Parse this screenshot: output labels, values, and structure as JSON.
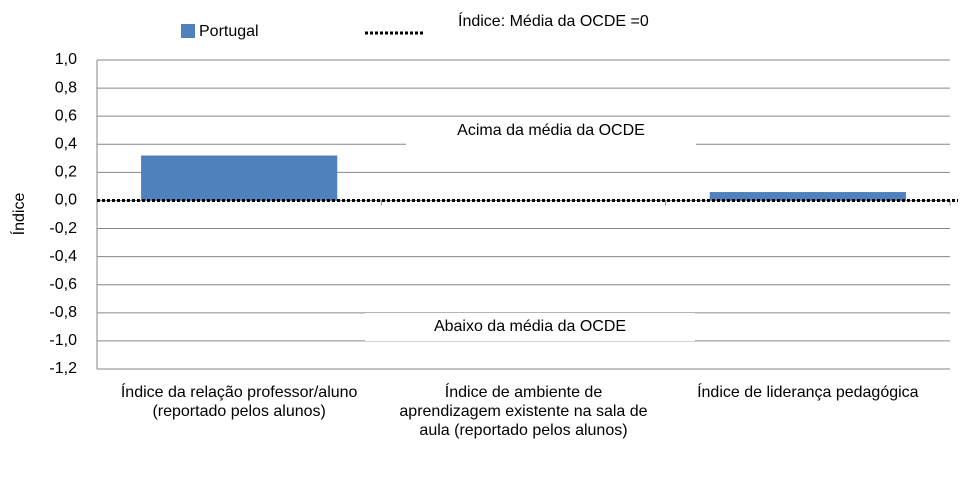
{
  "chart_data": {
    "type": "bar",
    "categories": [
      "Índice da relação professor/aluno (reportado pelos alunos)",
      "Índice de ambiente de aprendizagem existente na sala de aula (reportado pelos alunos)",
      "Índice de liderança pedagógica"
    ],
    "series": [
      {
        "name": "Portugal",
        "color": "#4f81bd",
        "values": [
          0.32,
          0.0,
          0.06
        ]
      }
    ],
    "reference_line": {
      "label": "Índice: Média da OCDE =0",
      "value": 0
    },
    "ylabel": "Índice",
    "annotations": [
      "Acima da média da OCDE",
      "Abaixo da média da OCDE"
    ],
    "ylim": [
      -1.2,
      1.0
    ],
    "yticks": [
      {
        "value": -1.2,
        "label": "-1,2"
      },
      {
        "value": -1.0,
        "label": "-1,0"
      },
      {
        "value": -0.8,
        "label": "-0,8"
      },
      {
        "value": -0.6,
        "label": "-0,6"
      },
      {
        "value": -0.4,
        "label": "-0,4"
      },
      {
        "value": -0.2,
        "label": "-0,2"
      },
      {
        "value": 0.0,
        "label": "0,0"
      },
      {
        "value": 0.2,
        "label": "0,2"
      },
      {
        "value": 0.4,
        "label": "0,4"
      },
      {
        "value": 0.6,
        "label": "0,6"
      },
      {
        "value": 0.8,
        "label": "0,8"
      },
      {
        "value": 1.0,
        "label": "1,0"
      }
    ],
    "grid": true,
    "legend": "top"
  }
}
